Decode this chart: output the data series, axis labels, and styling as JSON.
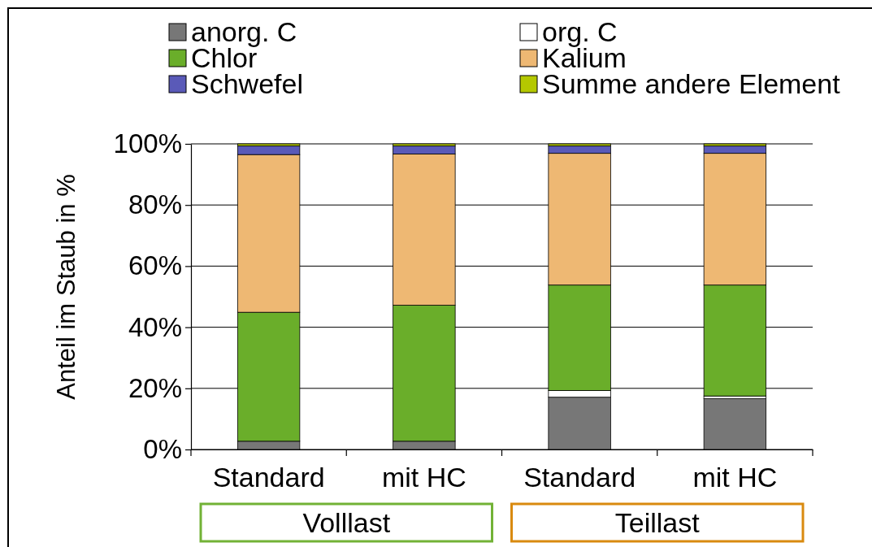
{
  "chart_data": {
    "type": "bar",
    "stacked": true,
    "categories": [
      "Standard",
      "mit HC",
      "Standard",
      "mit HC"
    ],
    "series": [
      {
        "name": "anorg. C",
        "color": "#777777",
        "values": [
          2.7,
          2.7,
          17.1,
          16.6
        ]
      },
      {
        "name": "org. C",
        "color": "#ffffff",
        "values": [
          null,
          null,
          2.2,
          0.9
        ]
      },
      {
        "name": "Chlor",
        "color": "#6aae2a",
        "values": [
          42.2,
          44.5,
          34.5,
          36.3
        ]
      },
      {
        "name": "Kalium",
        "color": "#eeb873",
        "values": [
          51.6,
          49.5,
          43.1,
          43.1
        ]
      },
      {
        "name": "Schwefel",
        "color": "#5a5ab8",
        "values": [
          2.8,
          2.6,
          2.4,
          2.4
        ]
      },
      {
        "name": "Summe andere Element",
        "color": "#b4c800",
        "values": [
          0.7,
          0.7,
          0.7,
          0.7
        ]
      }
    ],
    "ylabel": "Anteil im Staub in %",
    "ylim": [
      0,
      100
    ],
    "yticks": [
      {
        "value": 0,
        "label": "0%"
      },
      {
        "value": 20,
        "label": "20%"
      },
      {
        "value": 40,
        "label": "40%"
      },
      {
        "value": 60,
        "label": "60%"
      },
      {
        "value": 80,
        "label": "80%"
      },
      {
        "value": 100,
        "label": "100%"
      }
    ],
    "grid": "y",
    "legend": "top",
    "annotations": [
      "Volllast",
      "Teillast"
    ]
  }
}
